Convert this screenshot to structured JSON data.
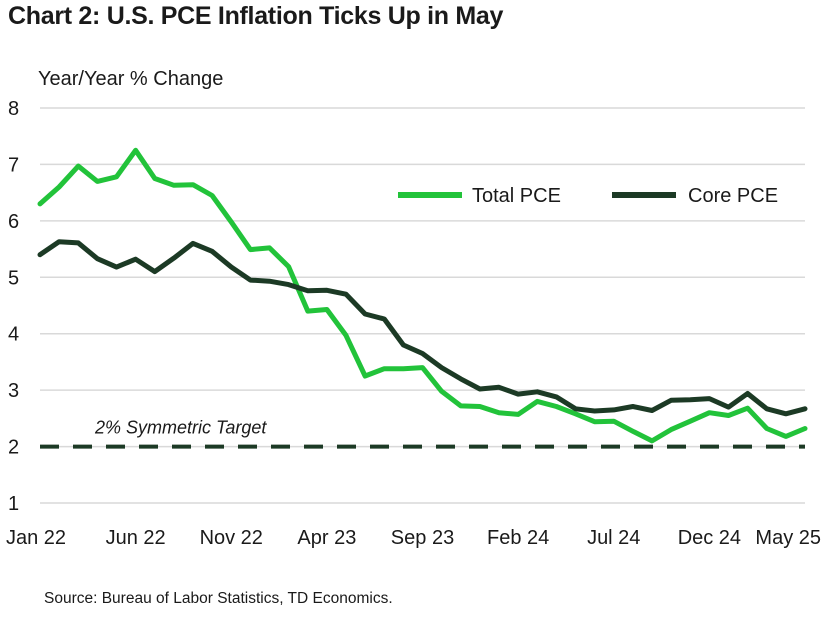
{
  "title": "Chart 2: U.S. PCE Inflation Ticks Up in May",
  "source": "Source: Bureau of Labor Statistics, TD Economics.",
  "colors": {
    "total": "#22c33a",
    "core": "#1c3a25",
    "grid": "#d9d9d9",
    "target": "#1c3a25"
  },
  "chart_data": {
    "type": "line",
    "title": "Chart 2: U.S. PCE Inflation Ticks Up in May",
    "ylabel": "Year/Year % Change",
    "xlabel": "",
    "ylim": [
      1,
      8
    ],
    "yticks": [
      1,
      2,
      3,
      4,
      5,
      6,
      7,
      8
    ],
    "grid": true,
    "legend": "top-right",
    "x": [
      "Jan 22",
      "Feb 22",
      "Mar 22",
      "Apr 22",
      "May 22",
      "Jun 22",
      "Jul 22",
      "Aug 22",
      "Sep 22",
      "Oct 22",
      "Nov 22",
      "Dec 22",
      "Jan 23",
      "Feb 23",
      "Mar 23",
      "Apr 23",
      "May 23",
      "Jun 23",
      "Jul 23",
      "Aug 23",
      "Sep 23",
      "Oct 23",
      "Nov 23",
      "Dec 23",
      "Jan 24",
      "Feb 24",
      "Mar 24",
      "Apr 24",
      "May 24",
      "Jun 24",
      "Jul 24",
      "Aug 24",
      "Sep 24",
      "Oct 24",
      "Nov 24",
      "Dec 24",
      "Jan 25",
      "Feb 25",
      "Mar 25",
      "Apr 25",
      "May 25"
    ],
    "xtick_labels": [
      "Jan 22",
      "Jun 22",
      "Nov 22",
      "Apr 23",
      "Sep 23",
      "Feb 24",
      "Jul 24",
      "Dec 24",
      "May 25"
    ],
    "series": [
      {
        "name": "Total PCE",
        "values": [
          6.3,
          6.6,
          6.97,
          6.7,
          6.78,
          7.25,
          6.75,
          6.63,
          6.64,
          6.45,
          5.98,
          5.49,
          5.52,
          5.19,
          4.4,
          4.43,
          3.97,
          3.25,
          3.38,
          3.38,
          3.4,
          2.98,
          2.72,
          2.71,
          2.6,
          2.57,
          2.8,
          2.71,
          2.58,
          2.44,
          2.45,
          2.27,
          2.1,
          2.3,
          2.45,
          2.6,
          2.55,
          2.68,
          2.32,
          2.18,
          2.32
        ]
      },
      {
        "name": "Core PCE",
        "values": [
          5.4,
          5.63,
          5.61,
          5.33,
          5.18,
          5.32,
          5.1,
          5.34,
          5.6,
          5.46,
          5.18,
          4.95,
          4.93,
          4.87,
          4.76,
          4.77,
          4.7,
          4.35,
          4.26,
          3.8,
          3.65,
          3.4,
          3.2,
          3.02,
          3.05,
          2.93,
          2.97,
          2.88,
          2.67,
          2.63,
          2.65,
          2.71,
          2.64,
          2.82,
          2.83,
          2.85,
          2.7,
          2.94,
          2.67,
          2.58,
          2.67
        ]
      }
    ],
    "reference_line": {
      "value": 2,
      "label": "2% Symmetric Target"
    }
  }
}
